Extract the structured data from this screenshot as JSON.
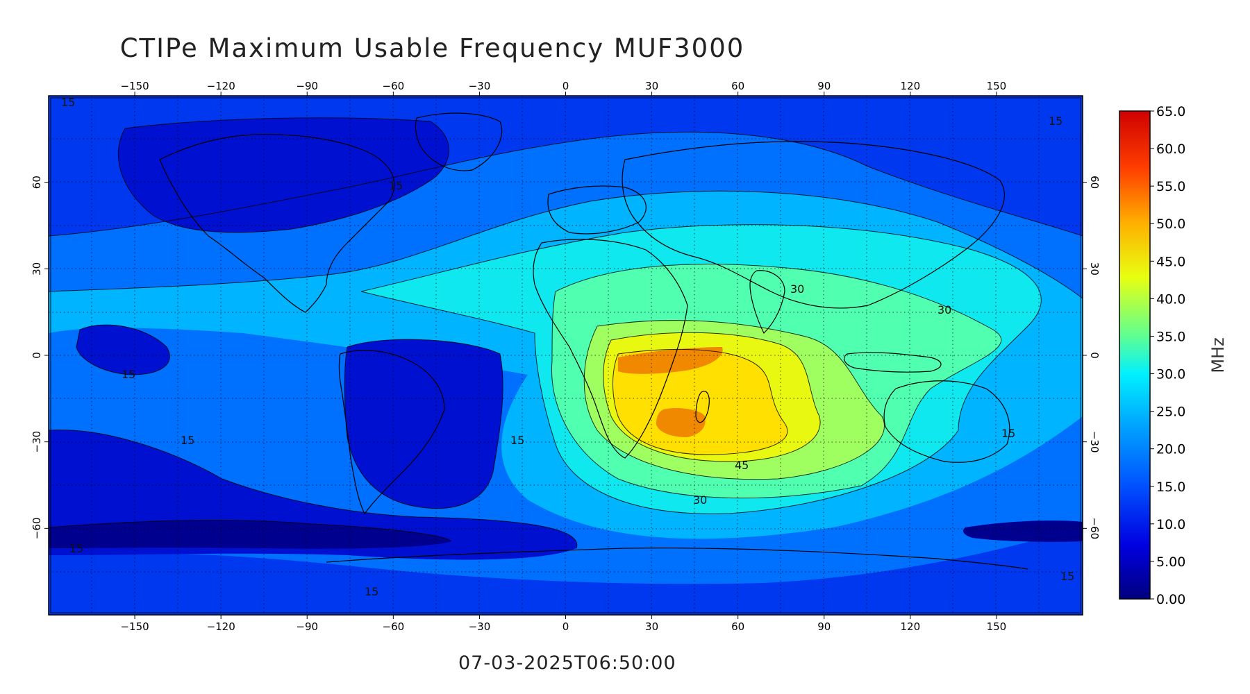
{
  "title": "CTIPe Maximum Usable Frequency MUF3000",
  "timestamp": "07-03-2025T06:50:00",
  "map": {
    "x_ticks": [
      "−150",
      "−120",
      "−90",
      "−60",
      "−30",
      "0",
      "30",
      "60",
      "90",
      "120",
      "150"
    ],
    "x_tick_values": [
      -150,
      -120,
      -90,
      -60,
      -30,
      0,
      30,
      60,
      90,
      120,
      150
    ],
    "y_ticks": [
      "60",
      "30",
      "0",
      "−30",
      "−60"
    ],
    "y_tick_values": [
      60,
      30,
      0,
      -30,
      -60
    ],
    "lon_range": [
      -180,
      180
    ],
    "lat_range": [
      -90,
      90
    ],
    "contour_labels": [
      "15",
      "15",
      "15",
      "15",
      "15",
      "15",
      "15",
      "15",
      "15",
      "15",
      "30",
      "30",
      "30",
      "45"
    ]
  },
  "colorbar": {
    "unit": "MHz",
    "labels": [
      "65.0",
      "60.0",
      "55.0",
      "50.0",
      "45.0",
      "40.0",
      "35.0",
      "30.0",
      "25.0",
      "20.0",
      "15.0",
      "10.0",
      "5.00",
      "0.00"
    ],
    "values": [
      65,
      60,
      55,
      50,
      45,
      40,
      35,
      30,
      25,
      20,
      15,
      10,
      5,
      0
    ],
    "range": [
      0,
      65
    ]
  },
  "colors": {
    "lvl0": "#00008f",
    "lvl5": "#0010d0",
    "lvl10": "#0038f0",
    "lvl15": "#0070ff",
    "lvl20": "#00b4ff",
    "lvl25": "#10e8f0",
    "lvl30": "#50ffb0",
    "lvl35": "#a0ff60",
    "lvl40": "#e8f810",
    "lvl45": "#ffe000",
    "lvl50": "#ff9000",
    "lvl55": "#ff5000",
    "lvl60": "#e00000"
  }
}
